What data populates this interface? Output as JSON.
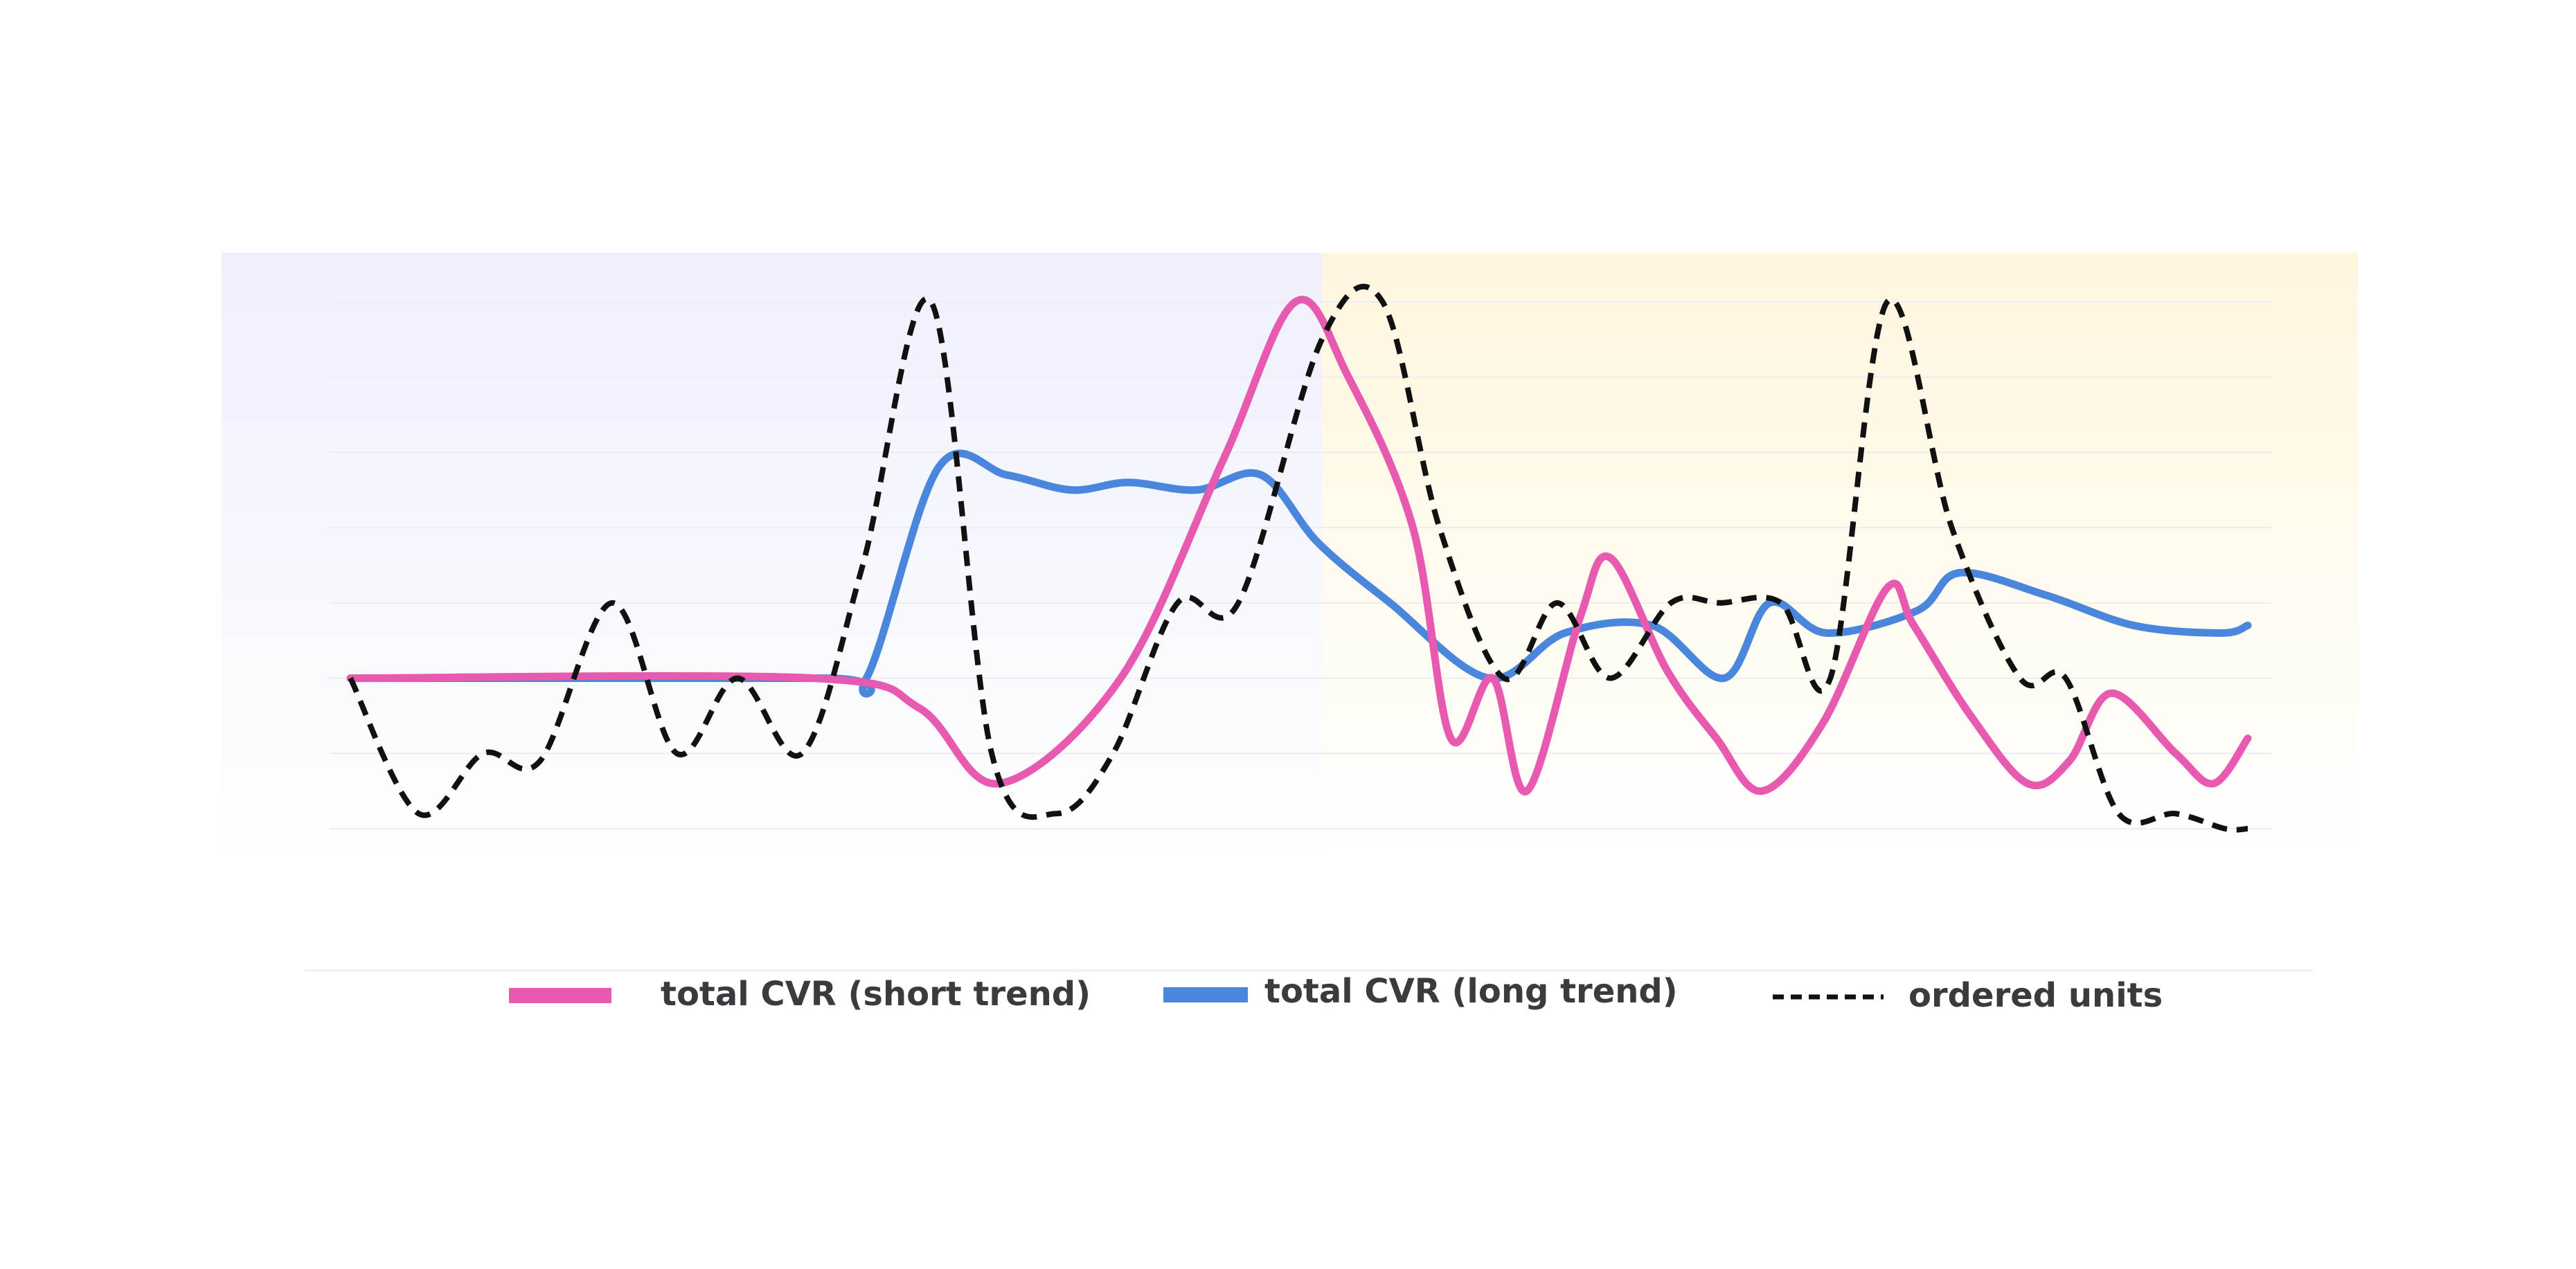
{
  "colors": {
    "short_trend": "#e85aaf",
    "long_trend": "#4a86dc",
    "ordered_units": "#111111",
    "left_band": "#eef0fc",
    "right_band": "#fff6de",
    "grid": "#ececf2",
    "text": "#3a3a3f"
  },
  "chart_data": {
    "type": "line",
    "title": "",
    "xlabel": "",
    "ylabel": "",
    "xlim": [
      0,
      50
    ],
    "ylim": [
      0,
      7
    ],
    "grid": true,
    "legend_position": "bottom",
    "shaded_regions": [
      {
        "x_start": -3.4,
        "x_end": 25.6,
        "color_key": "left_band"
      },
      {
        "x_start": 25.6,
        "x_end": 52.9,
        "color_key": "right_band"
      }
    ],
    "series": [
      {
        "name": "total CVR (short trend)",
        "color_key": "short_trend",
        "style": "solid",
        "x": [
          0,
          12.2,
          15,
          17.1,
          20.3,
          23,
          24.9,
          26.3,
          28,
          29,
          30.1,
          31,
          32.4,
          33.2,
          34.7,
          36,
          37.2,
          38.8,
          40.5,
          41.2,
          42.7,
          44.2,
          45.3,
          46.4,
          48.1,
          49.1,
          50
        ],
        "y": [
          2,
          2,
          1.6,
          0.6,
          2,
          4.9,
          7,
          6,
          4,
          1.2,
          2,
          0.5,
          2.8,
          3.6,
          2.1,
          1.2,
          0.5,
          1.4,
          3.2,
          2.7,
          1.5,
          0.6,
          0.9,
          1.8,
          1,
          0.6,
          1.2
        ]
      },
      {
        "name": "total CVR (long trend)",
        "color_key": "long_trend",
        "style": "solid",
        "x": [
          0,
          12.5,
          13.6,
          15.5,
          17.3,
          19,
          20.5,
          22.3,
          24,
          25.5,
          27.4,
          30,
          32,
          34.3,
          36.2,
          37.4,
          38.9,
          41.3,
          42.4,
          44.7,
          47,
          49.3,
          50
        ],
        "y": [
          2,
          2,
          2,
          4.8,
          4.7,
          4.5,
          4.6,
          4.5,
          4.7,
          3.8,
          3,
          2,
          2.6,
          2.7,
          2,
          3,
          2.6,
          2.9,
          3.4,
          3.1,
          2.7,
          2.6,
          2.7
        ]
      },
      {
        "name": "ordered units",
        "color_key": "ordered_units",
        "style": "dashed",
        "x": [
          0,
          1.8,
          3.5,
          5,
          6.9,
          8.6,
          10.2,
          11.9,
          13.5,
          15.3,
          16.9,
          18.6,
          20.1,
          21.8,
          23.4,
          25.6,
          27.2,
          28.7,
          30.4,
          31.8,
          33.2,
          34.8,
          36.1,
          37.7,
          39,
          40.5,
          42.2,
          44,
          45.2,
          46.6,
          48.1,
          49.4,
          50
        ],
        "y": [
          2,
          0.2,
          1,
          0.9,
          3,
          1,
          2,
          1,
          3.5,
          7,
          1,
          0.2,
          1,
          3,
          3,
          6.5,
          7,
          4,
          2,
          3,
          2,
          3,
          3,
          3,
          2,
          7,
          4,
          2,
          2,
          0.2,
          0.2,
          0,
          0
        ]
      }
    ],
    "legend": [
      {
        "label": "total CVR (short trend)",
        "color_key": "short_trend",
        "style": "solid"
      },
      {
        "label": "total CVR (long trend)",
        "color_key": "long_trend",
        "style": "solid"
      },
      {
        "label": "ordered units",
        "color_key": "ordered_units",
        "style": "dashed"
      }
    ]
  }
}
